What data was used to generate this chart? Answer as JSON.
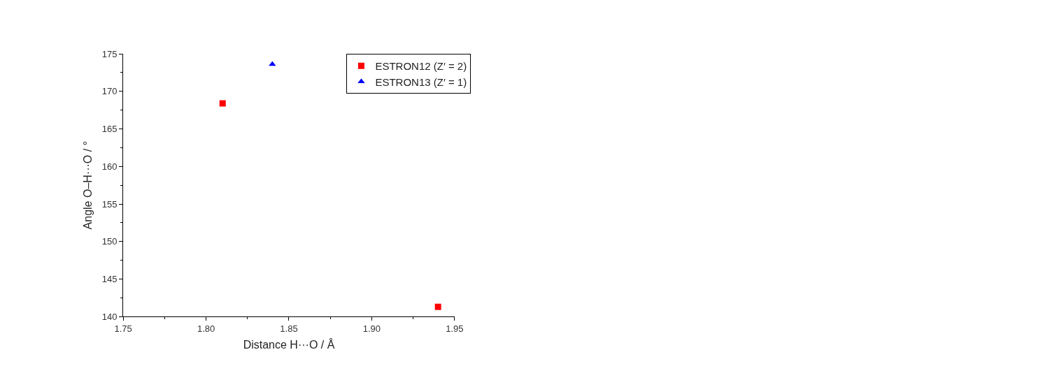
{
  "chart_data": {
    "type": "scatter",
    "xlabel": "Distance H···O / Å",
    "ylabel": "Angle O–H···O / °",
    "series": [
      {
        "name": "ESTRON12 (Z′ = 2)",
        "color": "#ff0000",
        "marker": "square",
        "x": [
          1.81,
          1.94
        ],
        "values": [
          168.4,
          141.3
        ]
      },
      {
        "name": "ESTRON13 (Z′ = 1)",
        "color": "#0000ff",
        "marker": "triangle",
        "x": [
          1.84
        ],
        "values": [
          173.6
        ]
      }
    ],
    "xlim": [
      1.75,
      1.95
    ],
    "xticks": [
      {
        "value": 1.75,
        "label": "1.75"
      },
      {
        "value": 1.8,
        "label": "1.80"
      },
      {
        "value": 1.85,
        "label": "1.85"
      },
      {
        "value": 1.9,
        "label": "1.90"
      },
      {
        "value": 1.95,
        "label": "1.95"
      }
    ],
    "ylim": [
      140,
      175
    ],
    "yticks": [
      140,
      145,
      150,
      155,
      160,
      165,
      170,
      175
    ],
    "legend": "top right"
  }
}
